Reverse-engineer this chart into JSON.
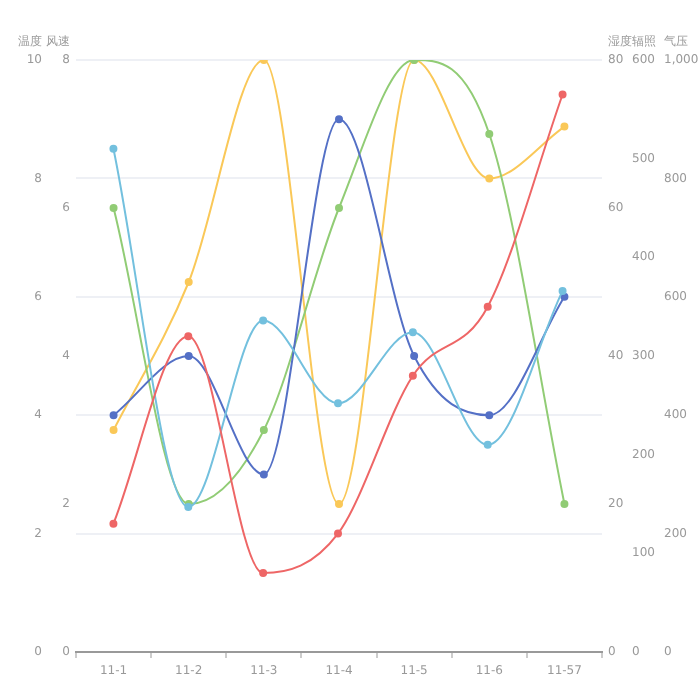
{
  "chart_data": [
    {
      "type": "line",
      "categories": [
        "11-1",
        "11-2",
        "11-3",
        "11-4",
        "11-5",
        "11-6",
        "11-57"
      ],
      "ylabel": "温度",
      "y2label": "风速",
      "y3label": "湿度",
      "ylim": [
        0,
        10
      ],
      "yticks": [
        0,
        2,
        4,
        6,
        8,
        10
      ],
      "y2lim": [
        0,
        8
      ],
      "y2ticks": [
        0,
        2,
        4,
        6,
        8
      ],
      "y3lim": [
        0,
        80
      ],
      "y3ticks": [
        0,
        20,
        40,
        60,
        80
      ],
      "grid": "y",
      "legend": false,
      "marker": "circle",
      "line_style": "solid",
      "series": [
        {
          "color": "#5470c6",
          "values": [
            4,
            5,
            3,
            9,
            5,
            4,
            6
          ]
        },
        {
          "color": "#91cc75",
          "axis": "y2",
          "values": [
            6,
            2,
            3,
            6,
            8,
            7,
            2
          ]
        },
        {
          "color": "#fac858",
          "axis": "y3",
          "values": [
            30,
            50,
            80,
            20,
            80,
            64,
            71
          ]
        }
      ]
    },
    {
      "type": "line",
      "categories": [
        null,
        null,
        null,
        null,
        null,
        null,
        null
      ],
      "ylabel": "辐照",
      "y2label": "气压",
      "ylim": [
        0,
        600
      ],
      "yticks": [
        0,
        100,
        200,
        300,
        400,
        500,
        600
      ],
      "y2lim": [
        0,
        1000
      ],
      "y2ticks": [
        0,
        200,
        400,
        600,
        800,
        {
          "value": 1000,
          "label": "1,000"
        }
      ],
      "tick_labels": "y",
      "legend": false,
      "marker": "circle",
      "line_style": "solid",
      "series": [
        {
          "color": "#ee6666",
          "values": [
            130,
            320,
            80,
            120,
            280,
            350,
            565
          ]
        },
        {
          "color": "#73c0de",
          "axis": "y2",
          "values": [
            850,
            245,
            560,
            420,
            540,
            350,
            610
          ]
        }
      ]
    }
  ]
}
